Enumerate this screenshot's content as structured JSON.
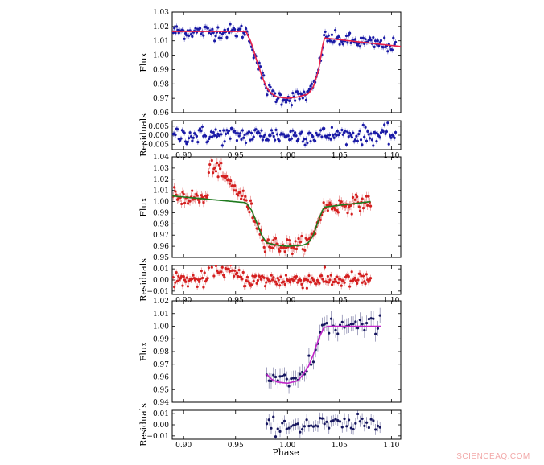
{
  "figure": {
    "xlabel": "Phase",
    "watermark": "SCIENCEAQ.COM"
  },
  "chart_data": [
    {
      "type": "scatter",
      "role": "light-curve",
      "ylabel": "Flux",
      "xlim": [
        0.889,
        1.109
      ],
      "ylim": [
        0.96,
        1.03
      ],
      "yticks": [
        "0.96",
        "0.97",
        "0.98",
        "0.99",
        "1.00",
        "1.01",
        "1.02",
        "1.03"
      ],
      "xtick_labels": false,
      "point_color": "#1a1aa6",
      "model_color": "#e8204a",
      "model": {
        "x": [
          0.889,
          0.96,
          0.965,
          0.97,
          0.975,
          0.98,
          0.985,
          0.99,
          1.0,
          1.01,
          1.02,
          1.025,
          1.03,
          1.035,
          1.109
        ],
        "y": [
          1.0165,
          1.0165,
          1.009,
          0.997,
          0.986,
          0.977,
          0.973,
          0.971,
          0.97,
          0.971,
          0.973,
          0.978,
          0.99,
          1.012,
          1.006
        ]
      },
      "scatter_x": [
        0.89,
        1.104
      ],
      "scatter_sigma": 0.0025,
      "errbar": 0.002,
      "n_points": 200
    },
    {
      "type": "scatter",
      "role": "residuals",
      "ylabel": "Residuals",
      "xlim": [
        0.889,
        1.109
      ],
      "ylim": [
        -0.008,
        0.008
      ],
      "yticks": [
        "0.005",
        "0.000",
        "−0.005"
      ],
      "ytick_values": [
        0.005,
        0.0,
        -0.005
      ],
      "xtick_labels": true,
      "xticks": [
        "0.90",
        "0.95",
        "1.00",
        "1.05",
        "1.10"
      ],
      "xtick_values": [
        0.9,
        0.95,
        1.0,
        1.05,
        1.1
      ],
      "point_color": "#1a1aa6",
      "scatter_x": [
        0.89,
        1.104
      ],
      "scatter_sigma": 0.0025,
      "errbar": 0.0015,
      "n_points": 200
    },
    {
      "type": "scatter",
      "role": "light-curve",
      "ylabel": "Flux",
      "xlim": [
        0.889,
        1.109
      ],
      "ylim": [
        0.95,
        1.04
      ],
      "yticks": [
        "0.95",
        "0.96",
        "0.97",
        "0.98",
        "0.99",
        "1.00",
        "1.01",
        "1.02",
        "1.03",
        "1.04"
      ],
      "xtick_labels": false,
      "point_color": "#d42020",
      "model_color": "#1f7a1f",
      "model": {
        "x": [
          0.889,
          0.96,
          0.965,
          0.97,
          0.975,
          0.98,
          0.99,
          1.0,
          1.015,
          1.02,
          1.025,
          1.03,
          1.035,
          1.08
        ],
        "y": [
          1.005,
          0.999,
          0.993,
          0.982,
          0.97,
          0.963,
          0.961,
          0.96,
          0.961,
          0.963,
          0.97,
          0.984,
          0.995,
          1.0
        ]
      },
      "bump": {
        "x0": 0.923,
        "x1": 0.962,
        "peak": 1.036,
        "base": 1.0
      },
      "scatter_x": [
        0.89,
        1.08
      ],
      "scatter_sigma": 0.0035,
      "errbar": 0.004,
      "n_points": 190
    },
    {
      "type": "scatter",
      "role": "residuals",
      "ylabel": "Residuals",
      "xlim": [
        0.889,
        1.109
      ],
      "ylim": [
        -0.013,
        0.013
      ],
      "yticks": [
        "0.01",
        "0.00",
        "−0.01"
      ],
      "ytick_values": [
        0.01,
        0.0,
        -0.01
      ],
      "xtick_labels": true,
      "xticks": [
        "0.90",
        "0.95",
        "1.00",
        "1.05",
        "1.10"
      ],
      "xtick_values": [
        0.9,
        0.95,
        1.0,
        1.05,
        1.1
      ],
      "point_color": "#d42020",
      "bump": {
        "x0": 0.923,
        "x1": 0.962,
        "peak": 0.015,
        "base": 0.0
      },
      "scatter_x": [
        0.89,
        1.08
      ],
      "scatter_sigma": 0.0035,
      "errbar": 0.003,
      "n_points": 190
    },
    {
      "type": "scatter",
      "role": "light-curve",
      "ylabel": "Flux",
      "xlim": [
        0.889,
        1.109
      ],
      "ylim": [
        0.94,
        1.02
      ],
      "yticks": [
        "0.94",
        "0.95",
        "0.96",
        "0.97",
        "0.98",
        "0.99",
        "1.00",
        "1.01",
        "1.02"
      ],
      "xtick_labels": false,
      "point_color": "#15155e",
      "model_color": "#c026c8",
      "model": {
        "x": [
          0.98,
          0.985,
          0.99,
          1.0,
          1.01,
          1.015,
          1.02,
          1.025,
          1.03,
          1.035,
          1.04,
          1.09
        ],
        "y": [
          0.962,
          0.958,
          0.956,
          0.955,
          0.957,
          0.962,
          0.968,
          0.978,
          0.99,
          0.999,
          1.0,
          1.0
        ]
      },
      "scatter_x": [
        0.98,
        1.089
      ],
      "scatter_sigma": 0.004,
      "errbar": 0.006,
      "n_points": 52
    },
    {
      "type": "scatter",
      "role": "residuals",
      "ylabel": "Residuals",
      "xlim": [
        0.889,
        1.109
      ],
      "ylim": [
        -0.013,
        0.013
      ],
      "yticks": [
        "0.01",
        "0.00",
        "−0.01"
      ],
      "ytick_values": [
        0.01,
        0.0,
        -0.01
      ],
      "xtick_labels": true,
      "xticks": [
        "0.90",
        "0.95",
        "1.00",
        "1.05",
        "1.10"
      ],
      "xtick_values": [
        0.9,
        0.95,
        1.0,
        1.05,
        1.1
      ],
      "point_color": "#15155e",
      "scatter_x": [
        0.98,
        1.089
      ],
      "scatter_sigma": 0.004,
      "errbar": 0.005,
      "n_points": 52
    }
  ]
}
